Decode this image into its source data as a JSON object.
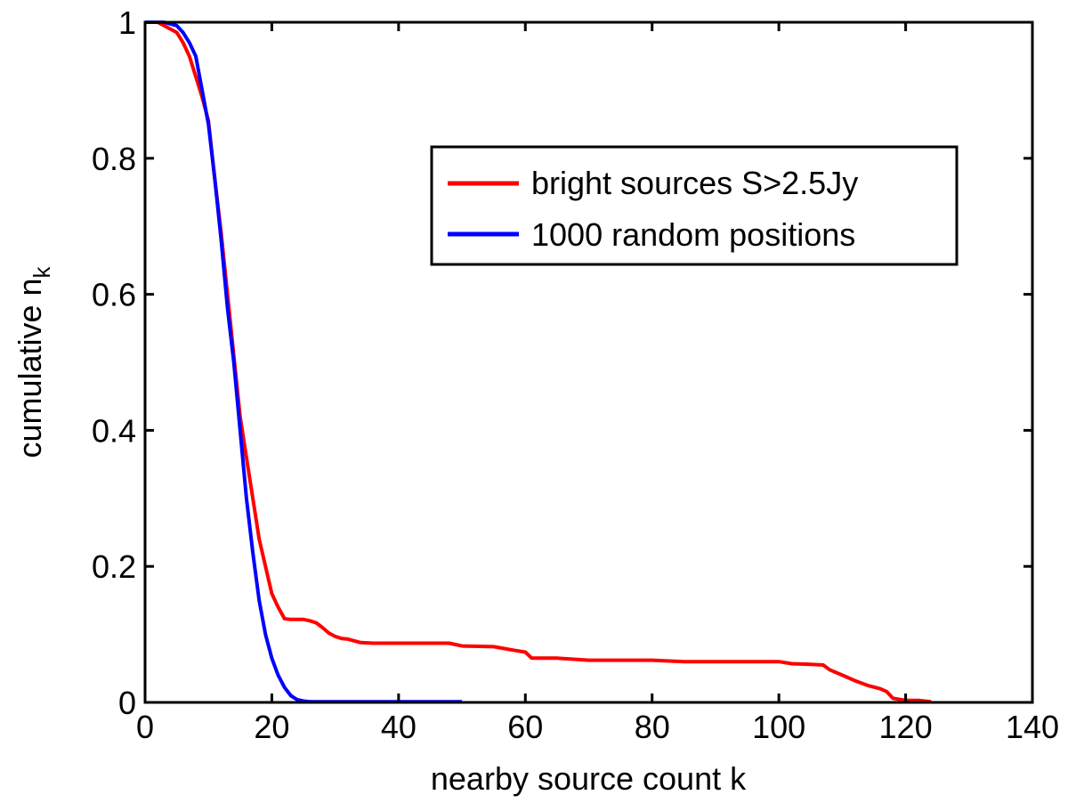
{
  "chart_data": {
    "type": "line",
    "title": "",
    "xlabel": "nearby source count k",
    "ylabel": "cumulative n",
    "ylabel_subscript": "k",
    "xlim": [
      0,
      140
    ],
    "ylim": [
      0,
      1
    ],
    "xticks": [
      0,
      20,
      40,
      60,
      80,
      100,
      120,
      140
    ],
    "xtick_labels": [
      "0",
      "20",
      "40",
      "60",
      "80",
      "100",
      "120",
      "140"
    ],
    "yticks": [
      0,
      0.2,
      0.4,
      0.6,
      0.8,
      1
    ],
    "ytick_labels": [
      "0",
      "0.2",
      "0.4",
      "0.6",
      "0.8",
      "1"
    ],
    "grid": false,
    "legend_position": "top-right",
    "series": [
      {
        "name": "bright sources S>2.5Jy",
        "color": "#ff0000",
        "x": [
          0,
          2,
          4,
          5,
          6,
          7,
          8,
          9,
          10,
          11,
          12,
          13,
          14,
          15,
          16,
          17,
          18,
          19,
          20,
          21,
          22,
          23,
          24,
          25,
          26,
          27,
          28,
          29,
          30,
          31,
          32,
          34,
          36,
          40,
          45,
          48,
          50,
          55,
          58,
          60,
          61,
          65,
          70,
          75,
          80,
          85,
          88,
          95,
          100,
          102,
          105,
          107,
          108,
          110,
          112,
          114,
          116,
          117,
          118,
          120,
          122,
          124
        ],
        "y": [
          1,
          1,
          0.99,
          0.985,
          0.97,
          0.95,
          0.92,
          0.89,
          0.855,
          0.77,
          0.69,
          0.6,
          0.51,
          0.42,
          0.36,
          0.3,
          0.24,
          0.2,
          0.16,
          0.14,
          0.123,
          0.122,
          0.122,
          0.122,
          0.12,
          0.117,
          0.11,
          0.102,
          0.097,
          0.094,
          0.093,
          0.088,
          0.087,
          0.087,
          0.087,
          0.087,
          0.083,
          0.082,
          0.077,
          0.074,
          0.065,
          0.065,
          0.062,
          0.062,
          0.062,
          0.06,
          0.06,
          0.06,
          0.06,
          0.057,
          0.056,
          0.055,
          0.048,
          0.04,
          0.032,
          0.025,
          0.02,
          0.016,
          0.006,
          0.003,
          0.003,
          0.001
        ]
      },
      {
        "name": "1000 random positions",
        "color": "#0000ff",
        "x": [
          0,
          3,
          5,
          6,
          7,
          8,
          9,
          10,
          11,
          12,
          13,
          14,
          15,
          16,
          17,
          18,
          19,
          20,
          21,
          22,
          23,
          24,
          25,
          26,
          28,
          30,
          40,
          50
        ],
        "y": [
          1,
          1,
          0.995,
          0.985,
          0.97,
          0.95,
          0.9,
          0.85,
          0.77,
          0.68,
          0.58,
          0.5,
          0.4,
          0.3,
          0.22,
          0.15,
          0.1,
          0.065,
          0.04,
          0.022,
          0.01,
          0.004,
          0.002,
          0.001,
          0.001,
          0.001,
          0.001,
          0.001
        ]
      }
    ]
  }
}
